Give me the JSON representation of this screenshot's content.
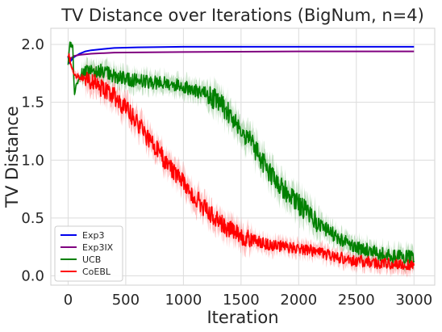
{
  "chart_data": {
    "type": "line",
    "title": "TV Distance over Iterations (BigNum, n=4)",
    "xlabel": "Iteration",
    "ylabel": "TV Distance",
    "xlim": [
      -150,
      3180
    ],
    "ylim": [
      -0.08,
      2.14
    ],
    "xticks": [
      "0",
      "500",
      "1000",
      "1500",
      "2000",
      "2500",
      "3000"
    ],
    "yticks": [
      "0.0",
      "0.5",
      "1.0",
      "1.5",
      "2.0"
    ],
    "grid": true,
    "legend_position": "lower-left",
    "series": [
      {
        "name": "Exp3",
        "color": "#0000ee",
        "x": [
          0,
          10,
          25,
          50,
          100,
          150,
          200,
          300,
          400,
          600,
          1000,
          1500,
          2000,
          3000
        ],
        "y": [
          1.9,
          1.84,
          1.86,
          1.89,
          1.92,
          1.94,
          1.95,
          1.96,
          1.97,
          1.975,
          1.98,
          1.98,
          1.98,
          1.98
        ]
      },
      {
        "name": "Exp3IX",
        "color": "#800080",
        "x": [
          0,
          10,
          25,
          50,
          100,
          200,
          400,
          1000,
          2000,
          3000
        ],
        "y": [
          1.9,
          1.86,
          1.88,
          1.9,
          1.91,
          1.92,
          1.93,
          1.935,
          1.94,
          1.94
        ]
      },
      {
        "name": "UCB",
        "color": "#008000",
        "x": [
          0,
          15,
          25,
          40,
          55,
          70,
          90,
          120,
          200,
          300,
          400,
          500,
          600,
          700,
          800,
          900,
          1000,
          1100,
          1200,
          1300,
          1400,
          1500,
          1600,
          1700,
          1800,
          1900,
          2000,
          2100,
          2200,
          2300,
          2400,
          2500,
          2600,
          2700,
          2800,
          2900,
          3000
        ],
        "y": [
          1.82,
          2.0,
          2.0,
          1.98,
          1.55,
          1.65,
          1.68,
          1.75,
          1.78,
          1.77,
          1.73,
          1.7,
          1.69,
          1.68,
          1.67,
          1.66,
          1.64,
          1.6,
          1.57,
          1.51,
          1.4,
          1.28,
          1.13,
          0.97,
          0.82,
          0.72,
          0.62,
          0.52,
          0.43,
          0.36,
          0.3,
          0.25,
          0.22,
          0.19,
          0.17,
          0.16,
          0.16
        ]
      },
      {
        "name": "CoEBL",
        "color": "#ff0000",
        "x": [
          0,
          30,
          60,
          100,
          200,
          300,
          400,
          500,
          600,
          700,
          800,
          900,
          1000,
          1100,
          1200,
          1300,
          1400,
          1500,
          1600,
          1700,
          1800,
          1900,
          2000,
          2100,
          2200,
          2300,
          2400,
          2500,
          2600,
          2700,
          2800,
          2900,
          3000
        ],
        "y": [
          1.92,
          1.82,
          1.72,
          1.72,
          1.68,
          1.62,
          1.55,
          1.45,
          1.32,
          1.18,
          1.05,
          0.92,
          0.8,
          0.68,
          0.57,
          0.48,
          0.4,
          0.35,
          0.31,
          0.28,
          0.26,
          0.25,
          0.24,
          0.22,
          0.2,
          0.17,
          0.15,
          0.13,
          0.12,
          0.11,
          0.1,
          0.1,
          0.1
        ]
      }
    ]
  }
}
